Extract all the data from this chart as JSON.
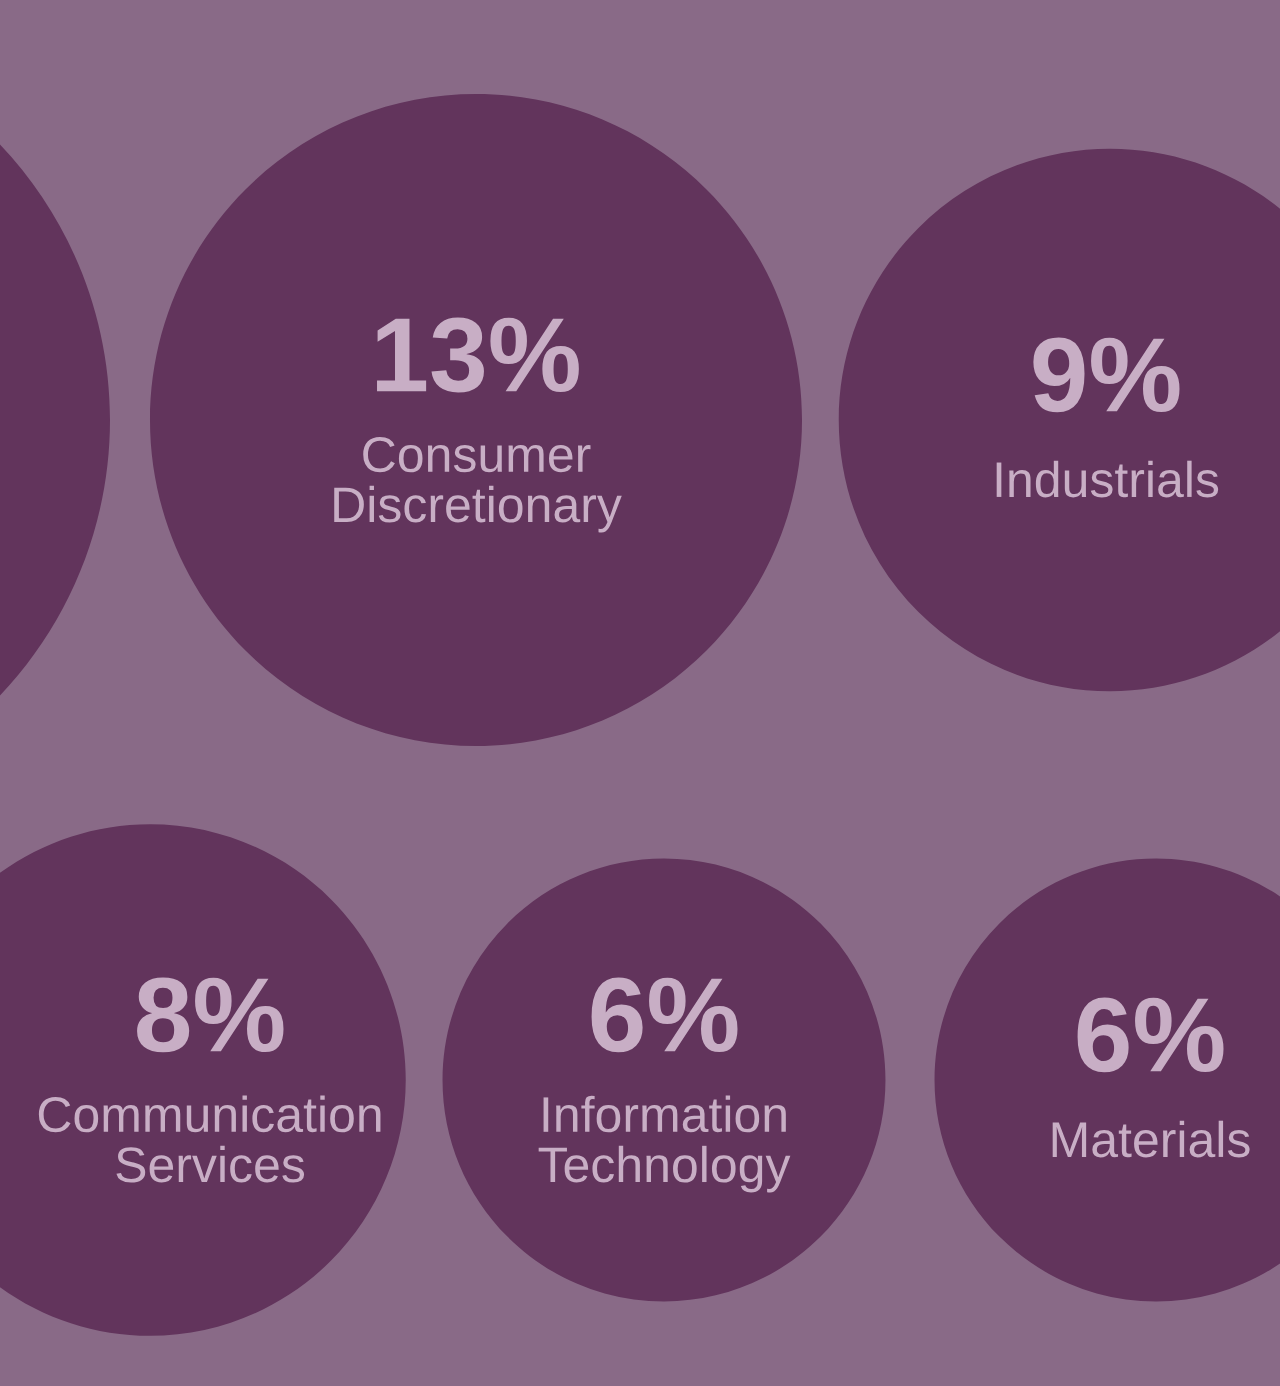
{
  "chart_data": {
    "type": "other",
    "categories": [
      null,
      "Consumer Discretionary",
      "Industrials",
      "Communication Services",
      "Information Technology",
      "Materials"
    ],
    "values": [
      null,
      13,
      9,
      8,
      6,
      6
    ],
    "value_labels": [
      null,
      "13%",
      "9%",
      "8%",
      "6%",
      "6%"
    ],
    "colors": [
      "#62345c",
      "#62345c",
      "#62345c",
      "#62345c",
      "#62345c",
      "#62345c"
    ]
  }
}
